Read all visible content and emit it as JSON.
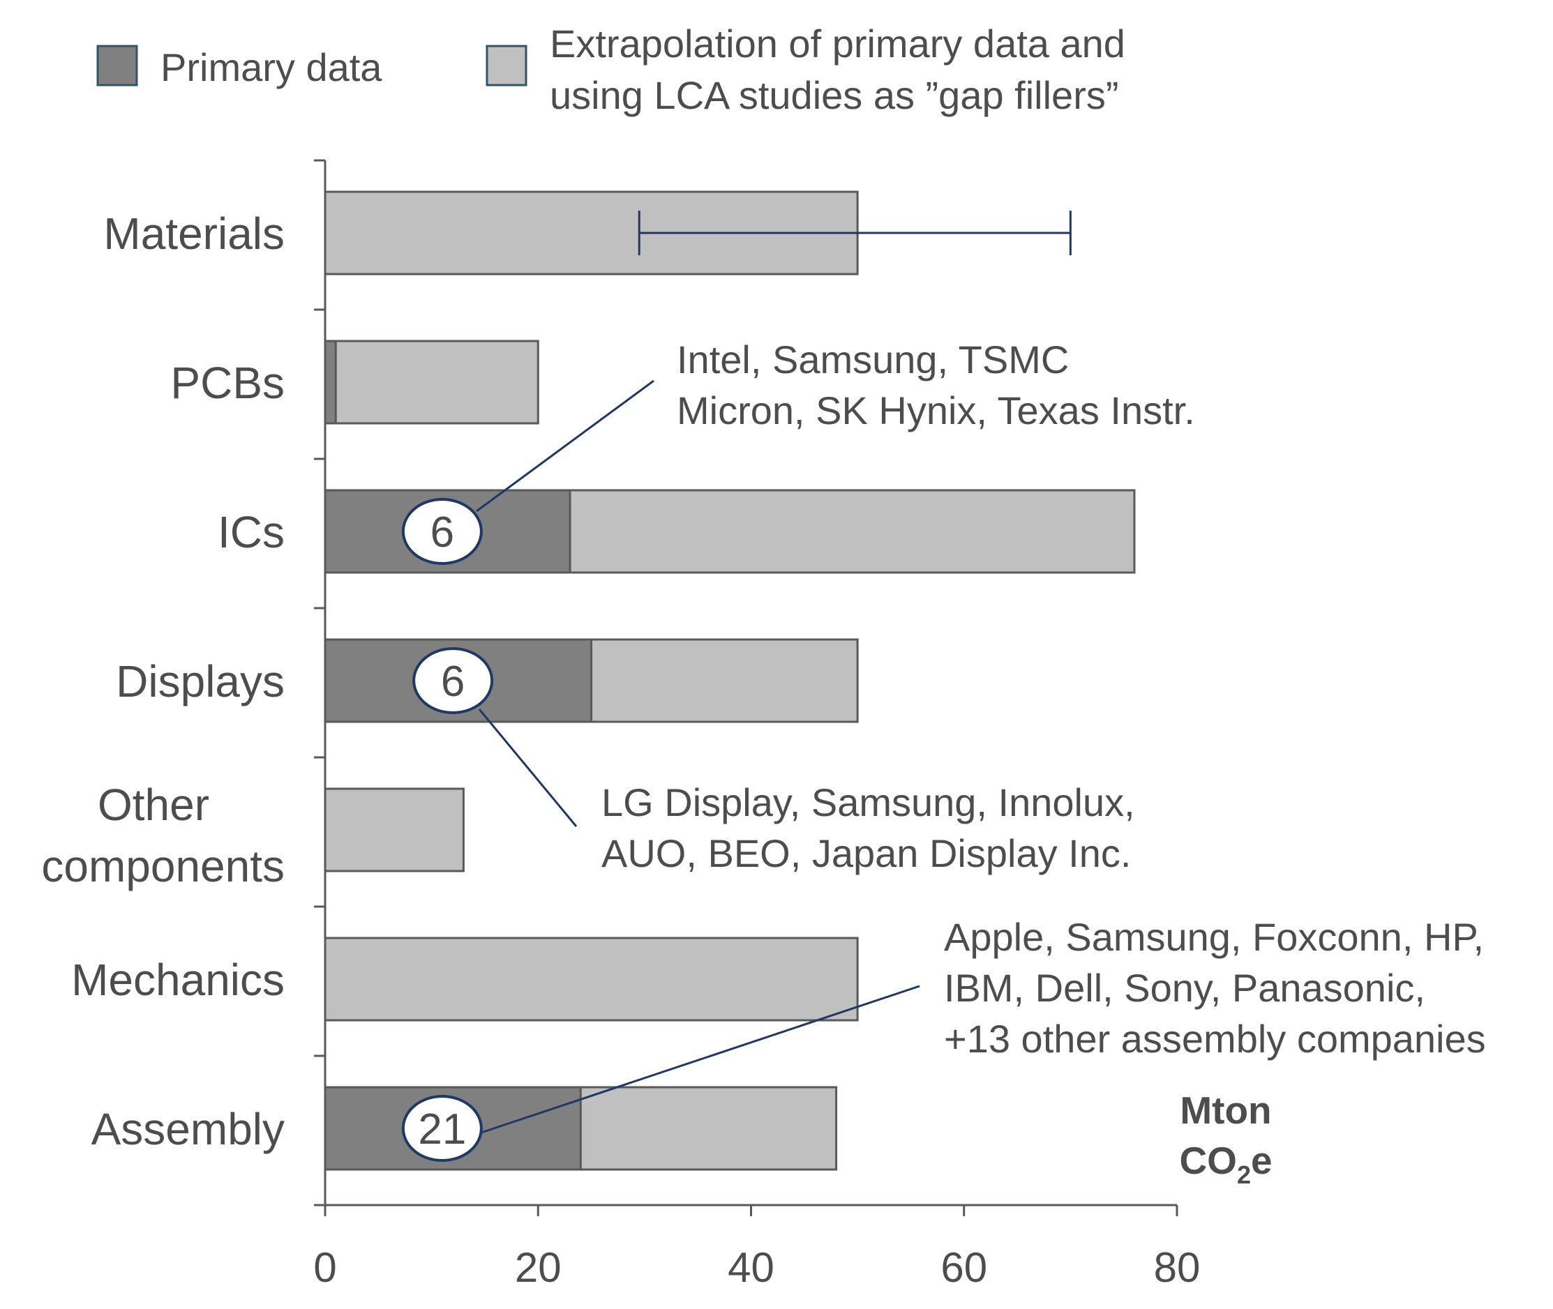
{
  "chart_data": {
    "type": "bar",
    "orientation": "horizontal",
    "stacked": true,
    "legend": {
      "placement": "top",
      "items": [
        {
          "label_lines": [
            "Primary data"
          ],
          "color": "#808080"
        },
        {
          "label_lines": [
            "Extrapolation of primary data and",
            "using LCA studies as ”gap fillers”"
          ],
          "color": "#c0c0c0"
        }
      ]
    },
    "categories": [
      {
        "lines": [
          "Materials"
        ]
      },
      {
        "lines": [
          "PCBs"
        ]
      },
      {
        "lines": [
          "ICs"
        ]
      },
      {
        "lines": [
          "Displays"
        ]
      },
      {
        "lines": [
          "Other",
          "components"
        ]
      },
      {
        "lines": [
          "Mechanics"
        ]
      },
      {
        "lines": [
          "Assembly"
        ]
      }
    ],
    "series": [
      {
        "name": "Primary data",
        "color": "#808080",
        "values": [
          0,
          1,
          23,
          25,
          0,
          0,
          24
        ]
      },
      {
        "name": "Extrapolation of primary data and using LCA studies as ”gap fillers”",
        "color": "#c0c0c0",
        "values": [
          50,
          19,
          53,
          25,
          13,
          50,
          24
        ]
      }
    ],
    "error_bar": {
      "category_index": 0,
      "low": 29.5,
      "high": 70
    },
    "annotations": [
      {
        "category_index": 2,
        "badge": "6",
        "badge_x": 11,
        "companies": [
          "Intel, Samsung, TSMC",
          "Micron, SK Hynix, Texas Instr."
        ]
      },
      {
        "category_index": 3,
        "badge": "6",
        "badge_x": 12,
        "companies": [
          "LG Display, Samsung, Innolux,",
          "AUO, BEO, Japan Display Inc."
        ]
      },
      {
        "category_index": 6,
        "badge": "21",
        "badge_x": 11,
        "companies": [
          "Apple, Samsung, Foxconn, HP,",
          "IBM, Dell, Sony, Panasonic,",
          "+13 other assembly companies"
        ]
      }
    ],
    "xlim": [
      0,
      80
    ],
    "xticks": [
      0,
      20,
      40,
      60,
      80
    ],
    "unit_label": {
      "line1": "Mton",
      "co2_main": "CO",
      "co2_sub": "2",
      "co2_tail": "e"
    },
    "grid": false,
    "axis_color": "#595959",
    "annotation_color": "#1f3864"
  }
}
